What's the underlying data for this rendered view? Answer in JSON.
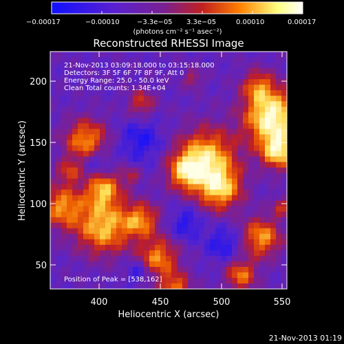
{
  "colorbar": {
    "tick_labels": [
      "−0.00017",
      "−0.00010",
      "−3.3e−05",
      "3.3e−05",
      "0.00010",
      "0.00017"
    ],
    "units_label": "(photons cm⁻² s⁻¹ asec⁻²)",
    "colors": [
      "#1010ff",
      "#5a20d0",
      "#7a2090",
      "#c02020",
      "#ff8000",
      "#ffff80",
      "#ffffff"
    ]
  },
  "plot": {
    "title": "Reconstructed RHESSI Image",
    "xlabel": "Heliocentric X (arcsec)",
    "ylabel": "Heliocentric Y (arcsec)",
    "x_ticks": [
      "400",
      "450",
      "500",
      "550"
    ],
    "y_ticks": [
      "200",
      "150",
      "100",
      "50"
    ],
    "xlim": [
      362,
      555
    ],
    "ylim": [
      30,
      222
    ],
    "info_lines": [
      "21-Nov-2013 03:09:18.000 to 03:15:18.000",
      "Detectors: 3F 5F 6F 7F 8F 9F, Att 0",
      "Energy Range: 25.0 - 50.0 keV",
      "Clean     Total counts: 1.34E+04"
    ],
    "peak_label": "Position of Peak = [538,162]"
  },
  "footer": {
    "timestamp": "21-Nov-2013 01:19"
  }
}
